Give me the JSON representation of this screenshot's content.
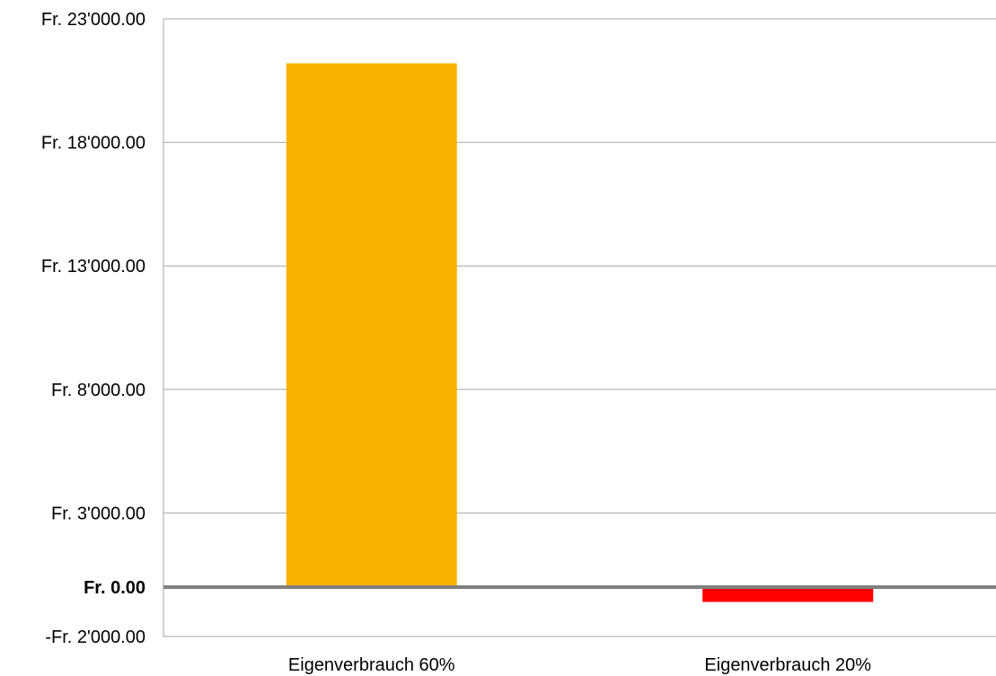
{
  "chart_data": {
    "type": "bar",
    "title": "",
    "xlabel": "",
    "ylabel": "",
    "categories": [
      "Eigenverbrauch 60%",
      "Eigenverbrauch 20%"
    ],
    "values": [
      21200,
      -600
    ],
    "bar_colors": [
      "#F8B300",
      "#FF0000"
    ],
    "ylim": [
      -2000,
      23000
    ],
    "y_ticks": [
      {
        "value": 23000,
        "label": "Fr. 23'000.00"
      },
      {
        "value": 18000,
        "label": "Fr. 18'000.00"
      },
      {
        "value": 13000,
        "label": "Fr. 13'000.00"
      },
      {
        "value": 8000,
        "label": "Fr. 8'000.00"
      },
      {
        "value": 3000,
        "label": "Fr. 3'000.00"
      },
      {
        "value": 0,
        "label": "Fr. 0.00",
        "bold": true
      },
      {
        "value": -2000,
        "label": "-Fr. 2'000.00"
      }
    ],
    "grid": true,
    "legend": "none",
    "gridline_color": "#A6A6A6",
    "zero_line_color": "#808080"
  }
}
